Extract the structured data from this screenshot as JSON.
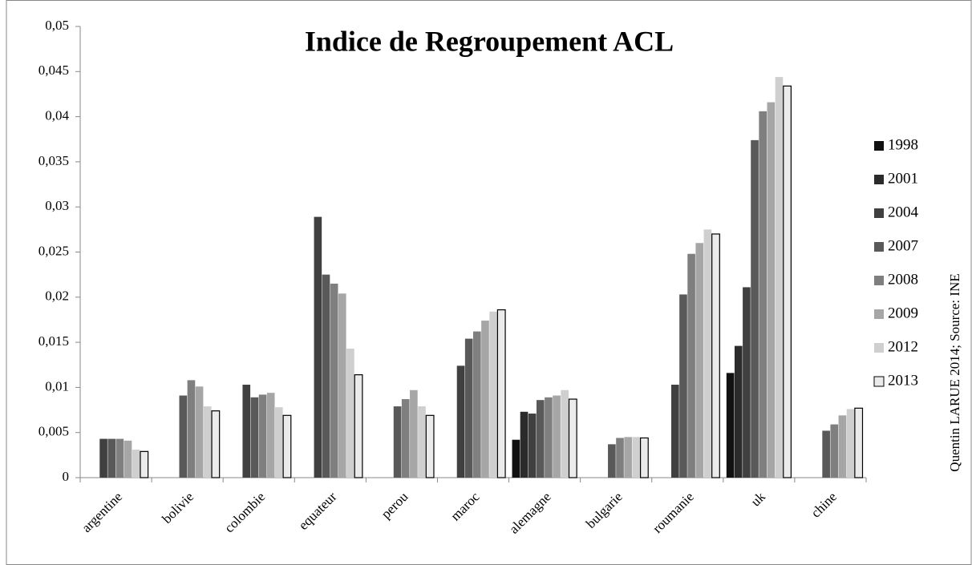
{
  "chart_data": {
    "type": "bar",
    "title": "Indice de Regroupement ACL",
    "annotation": "Quentin LARUE  2014; Source: INE",
    "categories": [
      "argentine",
      "bolivie",
      "colombie",
      "equateur",
      "perou",
      "maroc",
      "alemagne",
      "bulgarie",
      "roumanie",
      "uk",
      "chine"
    ],
    "series": [
      {
        "name": "1998",
        "color": "#111111",
        "values": [
          null,
          null,
          null,
          null,
          null,
          null,
          0.0042,
          null,
          null,
          0.0116,
          null
        ]
      },
      {
        "name": "2001",
        "color": "#2b2b2b",
        "values": [
          null,
          null,
          null,
          null,
          null,
          null,
          0.0073,
          null,
          null,
          0.0146,
          null
        ]
      },
      {
        "name": "2004",
        "color": "#404040",
        "values": [
          0.0043,
          null,
          0.0103,
          0.0289,
          null,
          0.0124,
          0.0071,
          null,
          0.0103,
          0.0211,
          null
        ]
      },
      {
        "name": "2007",
        "color": "#595959",
        "values": [
          0.0043,
          0.0091,
          0.0089,
          0.0225,
          0.0079,
          0.0154,
          0.0086,
          0.0037,
          0.0203,
          0.0374,
          0.0052
        ]
      },
      {
        "name": "2008",
        "color": "#7f7f7f",
        "values": [
          0.0043,
          0.0108,
          0.0092,
          0.0215,
          0.0087,
          0.0162,
          0.0089,
          0.0044,
          0.0248,
          0.0406,
          0.0059
        ]
      },
      {
        "name": "2009",
        "color": "#a6a6a6",
        "values": [
          0.0041,
          0.0101,
          0.0094,
          0.0204,
          0.0097,
          0.0174,
          0.0091,
          0.0045,
          0.026,
          0.0416,
          0.0069
        ]
      },
      {
        "name": "2012",
        "color": "#cfcfcf",
        "values": [
          0.0031,
          0.0079,
          0.0078,
          0.0143,
          0.0079,
          0.0184,
          0.0097,
          0.0045,
          0.0275,
          0.0444,
          0.0076
        ]
      },
      {
        "name": "2013",
        "color": "#ebebeb",
        "values": [
          0.0029,
          0.0074,
          0.0069,
          0.0114,
          0.0069,
          0.0186,
          0.0087,
          0.0044,
          0.027,
          0.0434,
          0.0077
        ]
      }
    ],
    "ylim": [
      0,
      0.05
    ],
    "yticks": [
      0,
      {
        "value": 0.005,
        "label": "0,005"
      },
      {
        "value": 0.01,
        "label": "0,01"
      },
      {
        "value": 0.015,
        "label": "0,015"
      },
      {
        "value": 0.02,
        "label": "0,02"
      },
      {
        "value": 0.025,
        "label": "0,025"
      },
      {
        "value": 0.03,
        "label": "0,03"
      },
      {
        "value": 0.035,
        "label": "0,035"
      },
      {
        "value": 0.04,
        "label": "0,04"
      },
      {
        "value": 0.045,
        "label": "0,045"
      },
      {
        "value": 0.05,
        "label": "0,05"
      }
    ],
    "legend": "right"
  }
}
